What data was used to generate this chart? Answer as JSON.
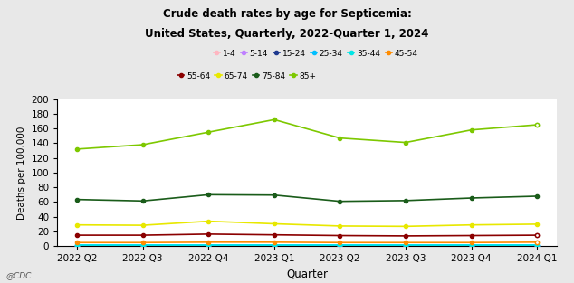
{
  "title_line1": "Crude death rates by age for Septicemia:",
  "title_line2": "United States, Quarterly, 2022-Quarter 1, 2024",
  "xlabel": "Quarter",
  "ylabel": "Deaths per 100,000",
  "x_labels": [
    "2022 Q2",
    "2022 Q3",
    "2022 Q4",
    "2023 Q1",
    "2023 Q2",
    "2023 Q3",
    "2023 Q4",
    "2024 Q1"
  ],
  "ylim": [
    0,
    200
  ],
  "yticks": [
    0,
    20,
    40,
    60,
    80,
    100,
    120,
    140,
    160,
    180,
    200
  ],
  "series": {
    "1-4": {
      "values": [
        0.2,
        0.2,
        0.2,
        0.2,
        0.2,
        0.2,
        0.2,
        0.2
      ],
      "color": "#ffb6c1",
      "open_last": false
    },
    "5-14": {
      "values": [
        0.3,
        0.3,
        0.3,
        0.3,
        0.3,
        0.3,
        0.3,
        0.3
      ],
      "color": "#bf80ff",
      "open_last": false
    },
    "15-24": {
      "values": [
        0.5,
        0.5,
        0.5,
        0.5,
        0.5,
        0.5,
        0.5,
        0.5
      ],
      "color": "#1f3a8f",
      "open_last": false
    },
    "25-34": {
      "values": [
        1.0,
        1.0,
        1.0,
        1.0,
        1.0,
        1.0,
        1.0,
        1.0
      ],
      "color": "#00bfff",
      "open_last": false
    },
    "35-44": {
      "values": [
        2.0,
        2.0,
        2.0,
        2.0,
        2.0,
        2.0,
        2.0,
        2.0
      ],
      "color": "#00e5e5",
      "open_last": false
    },
    "45-54": {
      "values": [
        5.0,
        5.0,
        5.5,
        5.5,
        5.0,
        5.0,
        5.0,
        5.5
      ],
      "color": "#ff8c00",
      "open_last": true
    },
    "55-64": {
      "values": [
        15.0,
        15.0,
        16.5,
        15.5,
        14.5,
        14.0,
        14.5,
        15.0
      ],
      "color": "#8b0000",
      "open_last": true
    },
    "65-74": {
      "values": [
        29.0,
        28.5,
        34.0,
        30.5,
        27.5,
        27.0,
        29.0,
        30.0
      ],
      "color": "#e8e800",
      "open_last": false
    },
    "75-84": {
      "values": [
        63.5,
        61.5,
        70.0,
        69.5,
        61.0,
        62.0,
        65.5,
        68.0
      ],
      "color": "#1a5c1a",
      "open_last": false
    },
    "85+": {
      "values": [
        132.0,
        138.0,
        155.0,
        172.0,
        147.0,
        141.0,
        158.0,
        165.0
      ],
      "color": "#7dc800",
      "open_last": true
    }
  },
  "legend_order": [
    "1-4",
    "5-14",
    "15-24",
    "25-34",
    "35-44",
    "45-54",
    "55-64",
    "65-74",
    "75-84",
    "85+"
  ],
  "background_color": "#e8e8e8",
  "plot_bg_color": "#ffffff",
  "watermark": "@CDC",
  "title_fontsize": 8.5,
  "axis_fontsize": 7.5,
  "legend_fontsize": 6.5
}
